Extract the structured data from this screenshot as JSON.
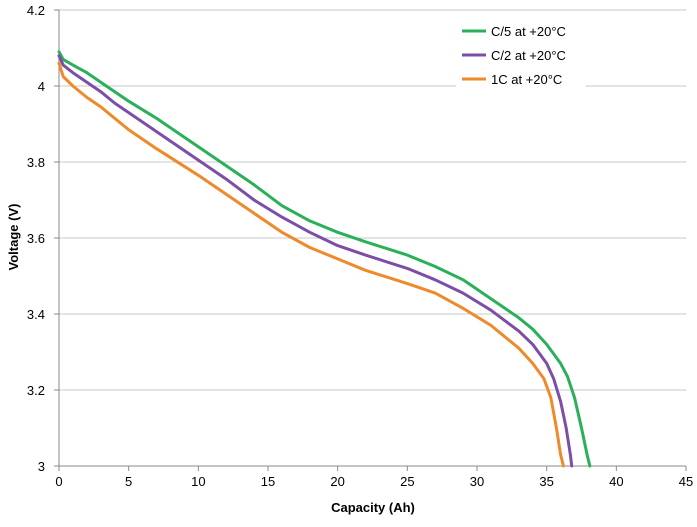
{
  "chart_data": {
    "type": "line",
    "xlabel": "Capacity (Ah)",
    "ylabel": "Voltage (V)",
    "xlim": [
      0,
      45
    ],
    "ylim": [
      3,
      4.2
    ],
    "xticks": [
      "0",
      "5",
      "10",
      "15",
      "20",
      "25",
      "30",
      "35",
      "40",
      "45"
    ],
    "yticks": [
      "3",
      "3.2",
      "3.4",
      "3.6",
      "3.8",
      "4",
      "4.2"
    ],
    "grid": "horizontal",
    "legend_position": "top-right",
    "series": [
      {
        "name": "C/5 at +20°C",
        "color": "#2bb05a",
        "points": [
          [
            0,
            4.09
          ],
          [
            0.3,
            4.07
          ],
          [
            1,
            4.055
          ],
          [
            2,
            4.035
          ],
          [
            3,
            4.01
          ],
          [
            4,
            3.985
          ],
          [
            5,
            3.96
          ],
          [
            7,
            3.915
          ],
          [
            10,
            3.84
          ],
          [
            12,
            3.79
          ],
          [
            14,
            3.74
          ],
          [
            16,
            3.685
          ],
          [
            18,
            3.645
          ],
          [
            20,
            3.615
          ],
          [
            22,
            3.59
          ],
          [
            25,
            3.555
          ],
          [
            27,
            3.525
          ],
          [
            29,
            3.49
          ],
          [
            31,
            3.44
          ],
          [
            33,
            3.39
          ],
          [
            34,
            3.36
          ],
          [
            35,
            3.32
          ],
          [
            36,
            3.27
          ],
          [
            36.5,
            3.235
          ],
          [
            37,
            3.18
          ],
          [
            37.5,
            3.1
          ],
          [
            37.9,
            3.03
          ],
          [
            38.1,
            3.0
          ]
        ]
      },
      {
        "name": "C/2 at +20°C",
        "color": "#7d4ea8",
        "points": [
          [
            0,
            4.08
          ],
          [
            0.3,
            4.055
          ],
          [
            1,
            4.035
          ],
          [
            2,
            4.01
          ],
          [
            3,
            3.985
          ],
          [
            4,
            3.955
          ],
          [
            5,
            3.93
          ],
          [
            7,
            3.88
          ],
          [
            10,
            3.805
          ],
          [
            12,
            3.755
          ],
          [
            14,
            3.7
          ],
          [
            16,
            3.655
          ],
          [
            18,
            3.615
          ],
          [
            20,
            3.58
          ],
          [
            22,
            3.555
          ],
          [
            25,
            3.52
          ],
          [
            27,
            3.49
          ],
          [
            29,
            3.455
          ],
          [
            31,
            3.41
          ],
          [
            33,
            3.355
          ],
          [
            34,
            3.32
          ],
          [
            35,
            3.27
          ],
          [
            35.5,
            3.23
          ],
          [
            36,
            3.17
          ],
          [
            36.4,
            3.1
          ],
          [
            36.7,
            3.03
          ],
          [
            36.8,
            3.0
          ]
        ]
      },
      {
        "name": "1C at +20°C",
        "color": "#ef8a2c",
        "points": [
          [
            0,
            4.06
          ],
          [
            0.3,
            4.025
          ],
          [
            1,
            4.0
          ],
          [
            2,
            3.97
          ],
          [
            3,
            3.945
          ],
          [
            4,
            3.915
          ],
          [
            5,
            3.885
          ],
          [
            7,
            3.835
          ],
          [
            10,
            3.765
          ],
          [
            12,
            3.715
          ],
          [
            14,
            3.665
          ],
          [
            16,
            3.615
          ],
          [
            18,
            3.575
          ],
          [
            20,
            3.545
          ],
          [
            22,
            3.515
          ],
          [
            25,
            3.48
          ],
          [
            27,
            3.455
          ],
          [
            29,
            3.415
          ],
          [
            31,
            3.37
          ],
          [
            33,
            3.31
          ],
          [
            34,
            3.27
          ],
          [
            34.8,
            3.23
          ],
          [
            35.3,
            3.18
          ],
          [
            35.7,
            3.1
          ],
          [
            36.0,
            3.03
          ],
          [
            36.2,
            3.0
          ]
        ]
      }
    ]
  }
}
